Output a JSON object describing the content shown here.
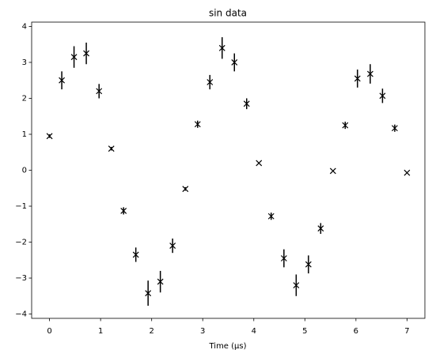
{
  "chart_data": {
    "type": "errorbar",
    "title": "sin data",
    "x_label": "Time (μs)",
    "color": "#000000",
    "marker": "x",
    "x": [
      0,
      0.24,
      0.48,
      0.72,
      0.97,
      1.21,
      1.45,
      1.69,
      1.93,
      2.17,
      2.41,
      2.66,
      2.9,
      3.14,
      3.38,
      3.62,
      3.86,
      4.1,
      4.34,
      4.59,
      4.83,
      5.07,
      5.31,
      5.55,
      5.79,
      6.03,
      6.28,
      6.52,
      6.76,
      7
    ],
    "values": [
      0.95,
      2.5,
      3.15,
      3.25,
      2.2,
      0.6,
      -1.13,
      -2.35,
      -3.42,
      -3.1,
      -2.1,
      -0.52,
      1.28,
      2.45,
      3.4,
      3.0,
      1.85,
      0.2,
      -1.28,
      -2.45,
      -3.2,
      -2.62,
      -1.62,
      -0.02,
      1.25,
      2.55,
      2.68,
      2.07,
      1.17,
      -0.07
    ],
    "errors": [
      0.05,
      0.25,
      0.3,
      0.3,
      0.2,
      0.05,
      0.1,
      0.2,
      0.35,
      0.3,
      0.2,
      0.05,
      0.1,
      0.2,
      0.3,
      0.25,
      0.15,
      0.02,
      0.1,
      0.25,
      0.3,
      0.25,
      0.15,
      0.01,
      0.1,
      0.25,
      0.27,
      0.2,
      0.1,
      0.01
    ],
    "xlim": [
      -0.35,
      7.35
    ],
    "ylim": [
      -4.12,
      4.12
    ],
    "xticks": [
      0,
      1,
      2,
      3,
      4,
      5,
      6,
      7
    ],
    "yticks": [
      {
        "value": -4,
        "label": "−4"
      },
      {
        "value": -3,
        "label": "−3"
      },
      {
        "value": -2,
        "label": "−2"
      },
      {
        "value": -1,
        "label": "−1"
      },
      0,
      1,
      2,
      3,
      4
    ]
  }
}
